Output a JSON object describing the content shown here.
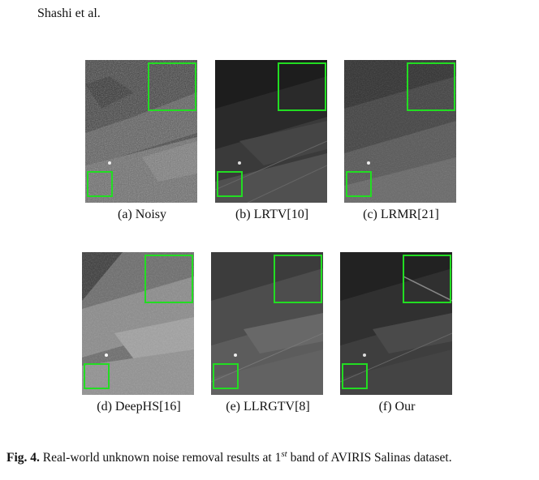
{
  "header": {
    "text": "Shashi et al."
  },
  "panels": [
    {
      "label": "(a) Noisy",
      "style": "noisy"
    },
    {
      "label": "(b) LRTV[10]",
      "style": "dark"
    },
    {
      "label": "(c) LRMR[21]",
      "style": "mid"
    },
    {
      "label": "(d) DeepHS[16]",
      "style": "bright"
    },
    {
      "label": "(e) LLRGTV[8]",
      "style": "smooth"
    },
    {
      "label": "(f) Our",
      "style": "ours"
    }
  ],
  "caption": {
    "label": "Fig. 4.",
    "text_before": " Real-world unknown noise removal results at 1",
    "superscript": "st",
    "text_after": " band of AVIRIS Salinas dataset."
  },
  "colors": {
    "highlight_box": "#22dd22"
  }
}
